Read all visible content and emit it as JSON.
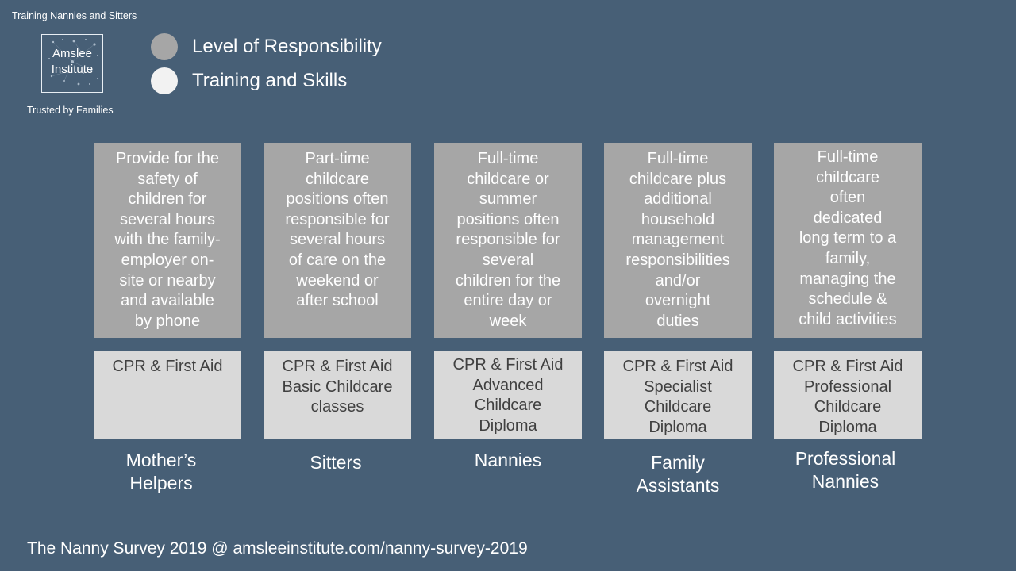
{
  "brand": {
    "tagline_top": "Training Nannies and Sitters",
    "logo_line1": "Amslee",
    "logo_line2": "Institute",
    "tagline_bottom": "Trusted by Families"
  },
  "legend": [
    {
      "label": "Level of Responsibility",
      "color": "#a6a6a6"
    },
    {
      "label": "Training and Skills",
      "color": "#f2f2f2"
    }
  ],
  "columns": [
    {
      "responsibility": [
        "Provide for the",
        "safety of",
        "children for",
        "several hours",
        "with the family-",
        "employer on-",
        "site or nearby",
        "and available",
        "by phone"
      ],
      "training": [
        "CPR & First Aid"
      ],
      "role": [
        "Mother’s",
        "Helpers"
      ]
    },
    {
      "responsibility": [
        "Part-time",
        "childcare",
        "positions often",
        "responsible for",
        "several hours",
        "of care on the",
        "weekend or",
        "after school"
      ],
      "training": [
        "CPR & First Aid",
        "Basic Childcare",
        "classes"
      ],
      "role": [
        "Sitters"
      ]
    },
    {
      "responsibility": [
        "Full-time",
        "childcare or",
        "summer",
        "positions often",
        "responsible for",
        "several",
        "children for the",
        "entire day or",
        "week"
      ],
      "training": [
        "CPR & First Aid",
        "Advanced",
        "Childcare",
        "Diploma"
      ],
      "role": [
        "Nannies"
      ]
    },
    {
      "responsibility": [
        "Full-time",
        "childcare plus",
        "additional",
        "household",
        "management",
        "responsibilities",
        "and/or",
        "overnight",
        "duties"
      ],
      "training": [
        "CPR & First Aid",
        "Specialist",
        "Childcare",
        "Diploma"
      ],
      "role": [
        "Family",
        "Assistants"
      ]
    },
    {
      "responsibility": [
        "Full-time",
        "childcare",
        "often",
        "dedicated",
        "long term to a",
        "family,",
        "managing the",
        "schedule &",
        "child activities"
      ],
      "training": [
        "CPR & First Aid",
        "Professional",
        "Childcare",
        "Diploma"
      ],
      "role": [
        "Professional",
        "Nannies"
      ]
    }
  ],
  "footer": "The Nanny Survey 2019 @ amsleeinstitute.com/nanny-survey-2019"
}
